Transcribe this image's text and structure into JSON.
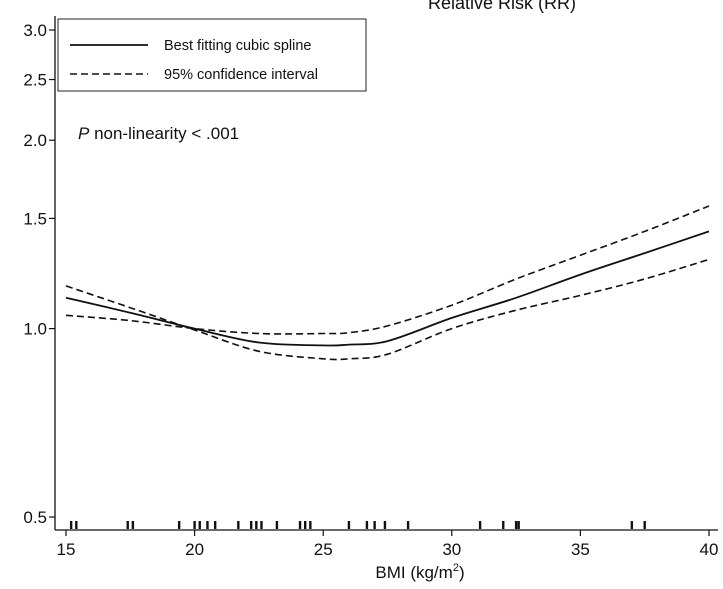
{
  "chart_data": {
    "type": "line",
    "title": "Relative Risk (RR)",
    "xlabel": "BMI (kg/m²)",
    "xlabel_main": "BMI (kg/m",
    "xlabel_sup": "2",
    "xlabel_close": ")",
    "ylabel": "",
    "y_scale": "log",
    "xlim": [
      15,
      40
    ],
    "ylim": [
      0.5,
      3.0
    ],
    "xticks": [
      15,
      20,
      25,
      30,
      35,
      40
    ],
    "xtick_labels": [
      "15",
      "20",
      "25",
      "30",
      "35",
      "40"
    ],
    "yticks": [
      0.5,
      1.0,
      1.5,
      2.0,
      2.5,
      3.0
    ],
    "ytick_labels": [
      "0.5",
      "1.0",
      "1.5",
      "2.0",
      "2.5",
      "3.0"
    ],
    "annotation": {
      "italic": "P",
      "text": " non-linearity < .001"
    },
    "legend": {
      "position": "top-left",
      "entries": [
        {
          "label": "Best fitting cubic spline",
          "style": "solid"
        },
        {
          "label": "95% confidence interval",
          "style": "dashed"
        }
      ]
    },
    "series": [
      {
        "name": "Best fitting cubic spline",
        "style": "solid",
        "x": [
          15,
          17.5,
          20,
          22.5,
          25,
          26,
          27.5,
          30,
          32.5,
          35,
          37.5,
          40
        ],
        "y": [
          1.12,
          1.06,
          1.0,
          0.95,
          0.94,
          0.943,
          0.955,
          1.04,
          1.12,
          1.22,
          1.32,
          1.43
        ]
      },
      {
        "name": "95% confidence interval (upper)",
        "style": "dashed",
        "x": [
          15,
          17.5,
          20,
          22.5,
          25,
          26,
          27.5,
          30,
          32.5,
          35,
          37.5,
          40
        ],
        "y": [
          1.05,
          1.03,
          1.0,
          0.982,
          0.982,
          0.985,
          1.01,
          1.09,
          1.2,
          1.31,
          1.43,
          1.57
        ]
      },
      {
        "name": "95% confidence interval (lower)",
        "style": "dashed",
        "x": [
          15,
          17.5,
          20,
          22.5,
          25,
          26,
          27.5,
          30,
          32.5,
          35,
          37.5,
          40
        ],
        "y": [
          1.17,
          1.08,
          0.995,
          0.92,
          0.895,
          0.895,
          0.91,
          1.0,
          1.07,
          1.13,
          1.2,
          1.29
        ]
      }
    ],
    "rug_x": [
      15.2,
      15.4,
      17.4,
      17.6,
      19.4,
      20.0,
      20.2,
      20.5,
      20.8,
      21.7,
      22.2,
      22.4,
      22.6,
      23.2,
      24.1,
      24.3,
      24.5,
      26.0,
      26.7,
      27.0,
      27.4,
      28.3,
      31.1,
      32.0,
      32.5,
      32.6,
      37.0,
      37.5
    ]
  }
}
